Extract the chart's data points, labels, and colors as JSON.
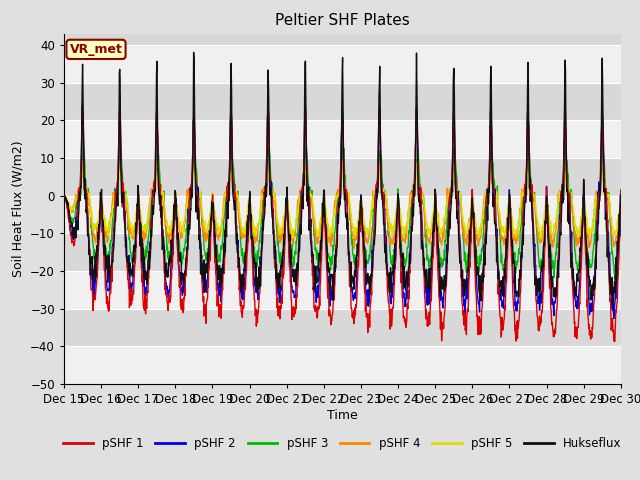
{
  "title": "Peltier SHF Plates",
  "ylabel": "Soil Heat Flux (W/m2)",
  "xlabel": "Time",
  "ylim": [
    -50,
    43
  ],
  "yticks": [
    -50,
    -40,
    -30,
    -20,
    -10,
    0,
    10,
    20,
    30,
    40
  ],
  "series_colors": {
    "pSHF 1": "#dd0000",
    "pSHF 2": "#0000dd",
    "pSHF 3": "#00bb00",
    "pSHF 4": "#ff8800",
    "pSHF 5": "#dddd00",
    "Hukseflux": "#111111"
  },
  "series_labels": [
    "pSHF 1",
    "pSHF 2",
    "pSHF 3",
    "pSHF 4",
    "pSHF 5",
    "Hukseflux"
  ],
  "xtick_labels": [
    "Dec 15",
    "Dec 16",
    "Dec 17",
    "Dec 18",
    "Dec 19",
    "Dec 20",
    "Dec 21",
    "Dec 22",
    "Dec 23",
    "Dec 24",
    "Dec 25",
    "Dec 26",
    "Dec 27",
    "Dec 28",
    "Dec 29",
    "Dec 30"
  ],
  "annotation_text": "VR_met",
  "annotation_color": "#8B0000",
  "bg_color": "#e0e0e0",
  "plot_bg_light": "#f0f0f0",
  "plot_bg_dark": "#d8d8d8",
  "grid_color": "#ffffff",
  "linewidth": 1.0,
  "n_days": 15,
  "pts_per_day": 96
}
